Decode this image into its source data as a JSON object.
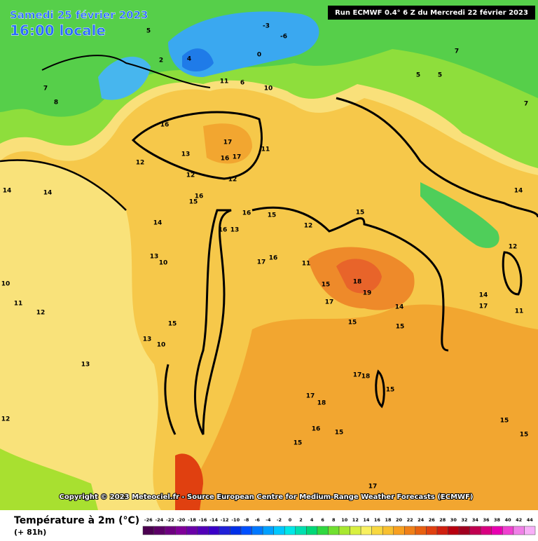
{
  "header": {
    "date": "Samedi 25 février 2023",
    "time": "16:00 locale",
    "run": "Run ECMWF 0.4° 6 Z du Mercredi 22 février 2023"
  },
  "copyright": "Copyright © 2023 Meteociel.fr - Source European Centre for Medium-Range Weather Forecasts (ECMWF)",
  "legend": {
    "title": "Température à 2m (°C)",
    "subtitle": "(+ 81h)",
    "ticks": [
      -26,
      -24,
      -22,
      -20,
      -18,
      -16,
      -14,
      -12,
      -10,
      -8,
      -6,
      -4,
      -2,
      0,
      2,
      4,
      6,
      8,
      10,
      12,
      14,
      16,
      18,
      20,
      22,
      24,
      26,
      28,
      30,
      32,
      34,
      36,
      38,
      40,
      42,
      44
    ],
    "colors": [
      "#4b0050",
      "#5c0066",
      "#6e0080",
      "#800099",
      "#6a00a8",
      "#5200b8",
      "#3a00c8",
      "#2020d8",
      "#0030e8",
      "#0050ff",
      "#0078ff",
      "#00a0ff",
      "#00c8ff",
      "#00e8e8",
      "#00e0b0",
      "#00d878",
      "#30d840",
      "#70e030",
      "#a8e830",
      "#d8f040",
      "#f8f060",
      "#f8d840",
      "#f8c030",
      "#f8a020",
      "#f08018",
      "#e86010",
      "#e04010",
      "#d02010",
      "#b80010",
      "#a00020",
      "#c00050",
      "#d80080",
      "#e800b0",
      "#f040d0",
      "#f080e8",
      "#f8b0f8"
    ]
  },
  "map": {
    "contour_labels": [
      "16",
      "17",
      "17",
      "16",
      "13",
      "12",
      "12",
      "12",
      "11",
      "14",
      "14",
      "16",
      "15",
      "16",
      "16",
      "13",
      "15",
      "14",
      "13",
      "10",
      "17",
      "16",
      "11",
      "12",
      "15",
      "18",
      "19",
      "15",
      "17",
      "14",
      "15",
      "15",
      "11",
      "12",
      "10",
      "15",
      "13",
      "10",
      "13",
      "17",
      "18",
      "15",
      "17",
      "18",
      "16",
      "15",
      "15",
      "12",
      "17",
      "17",
      "15",
      "15",
      "5",
      "5",
      "7",
      "7",
      "-3",
      "-6",
      "0",
      "4",
      "6",
      "10",
      "11",
      "7",
      "8",
      "5",
      "2",
      "14",
      "12",
      "14",
      "11"
    ]
  }
}
